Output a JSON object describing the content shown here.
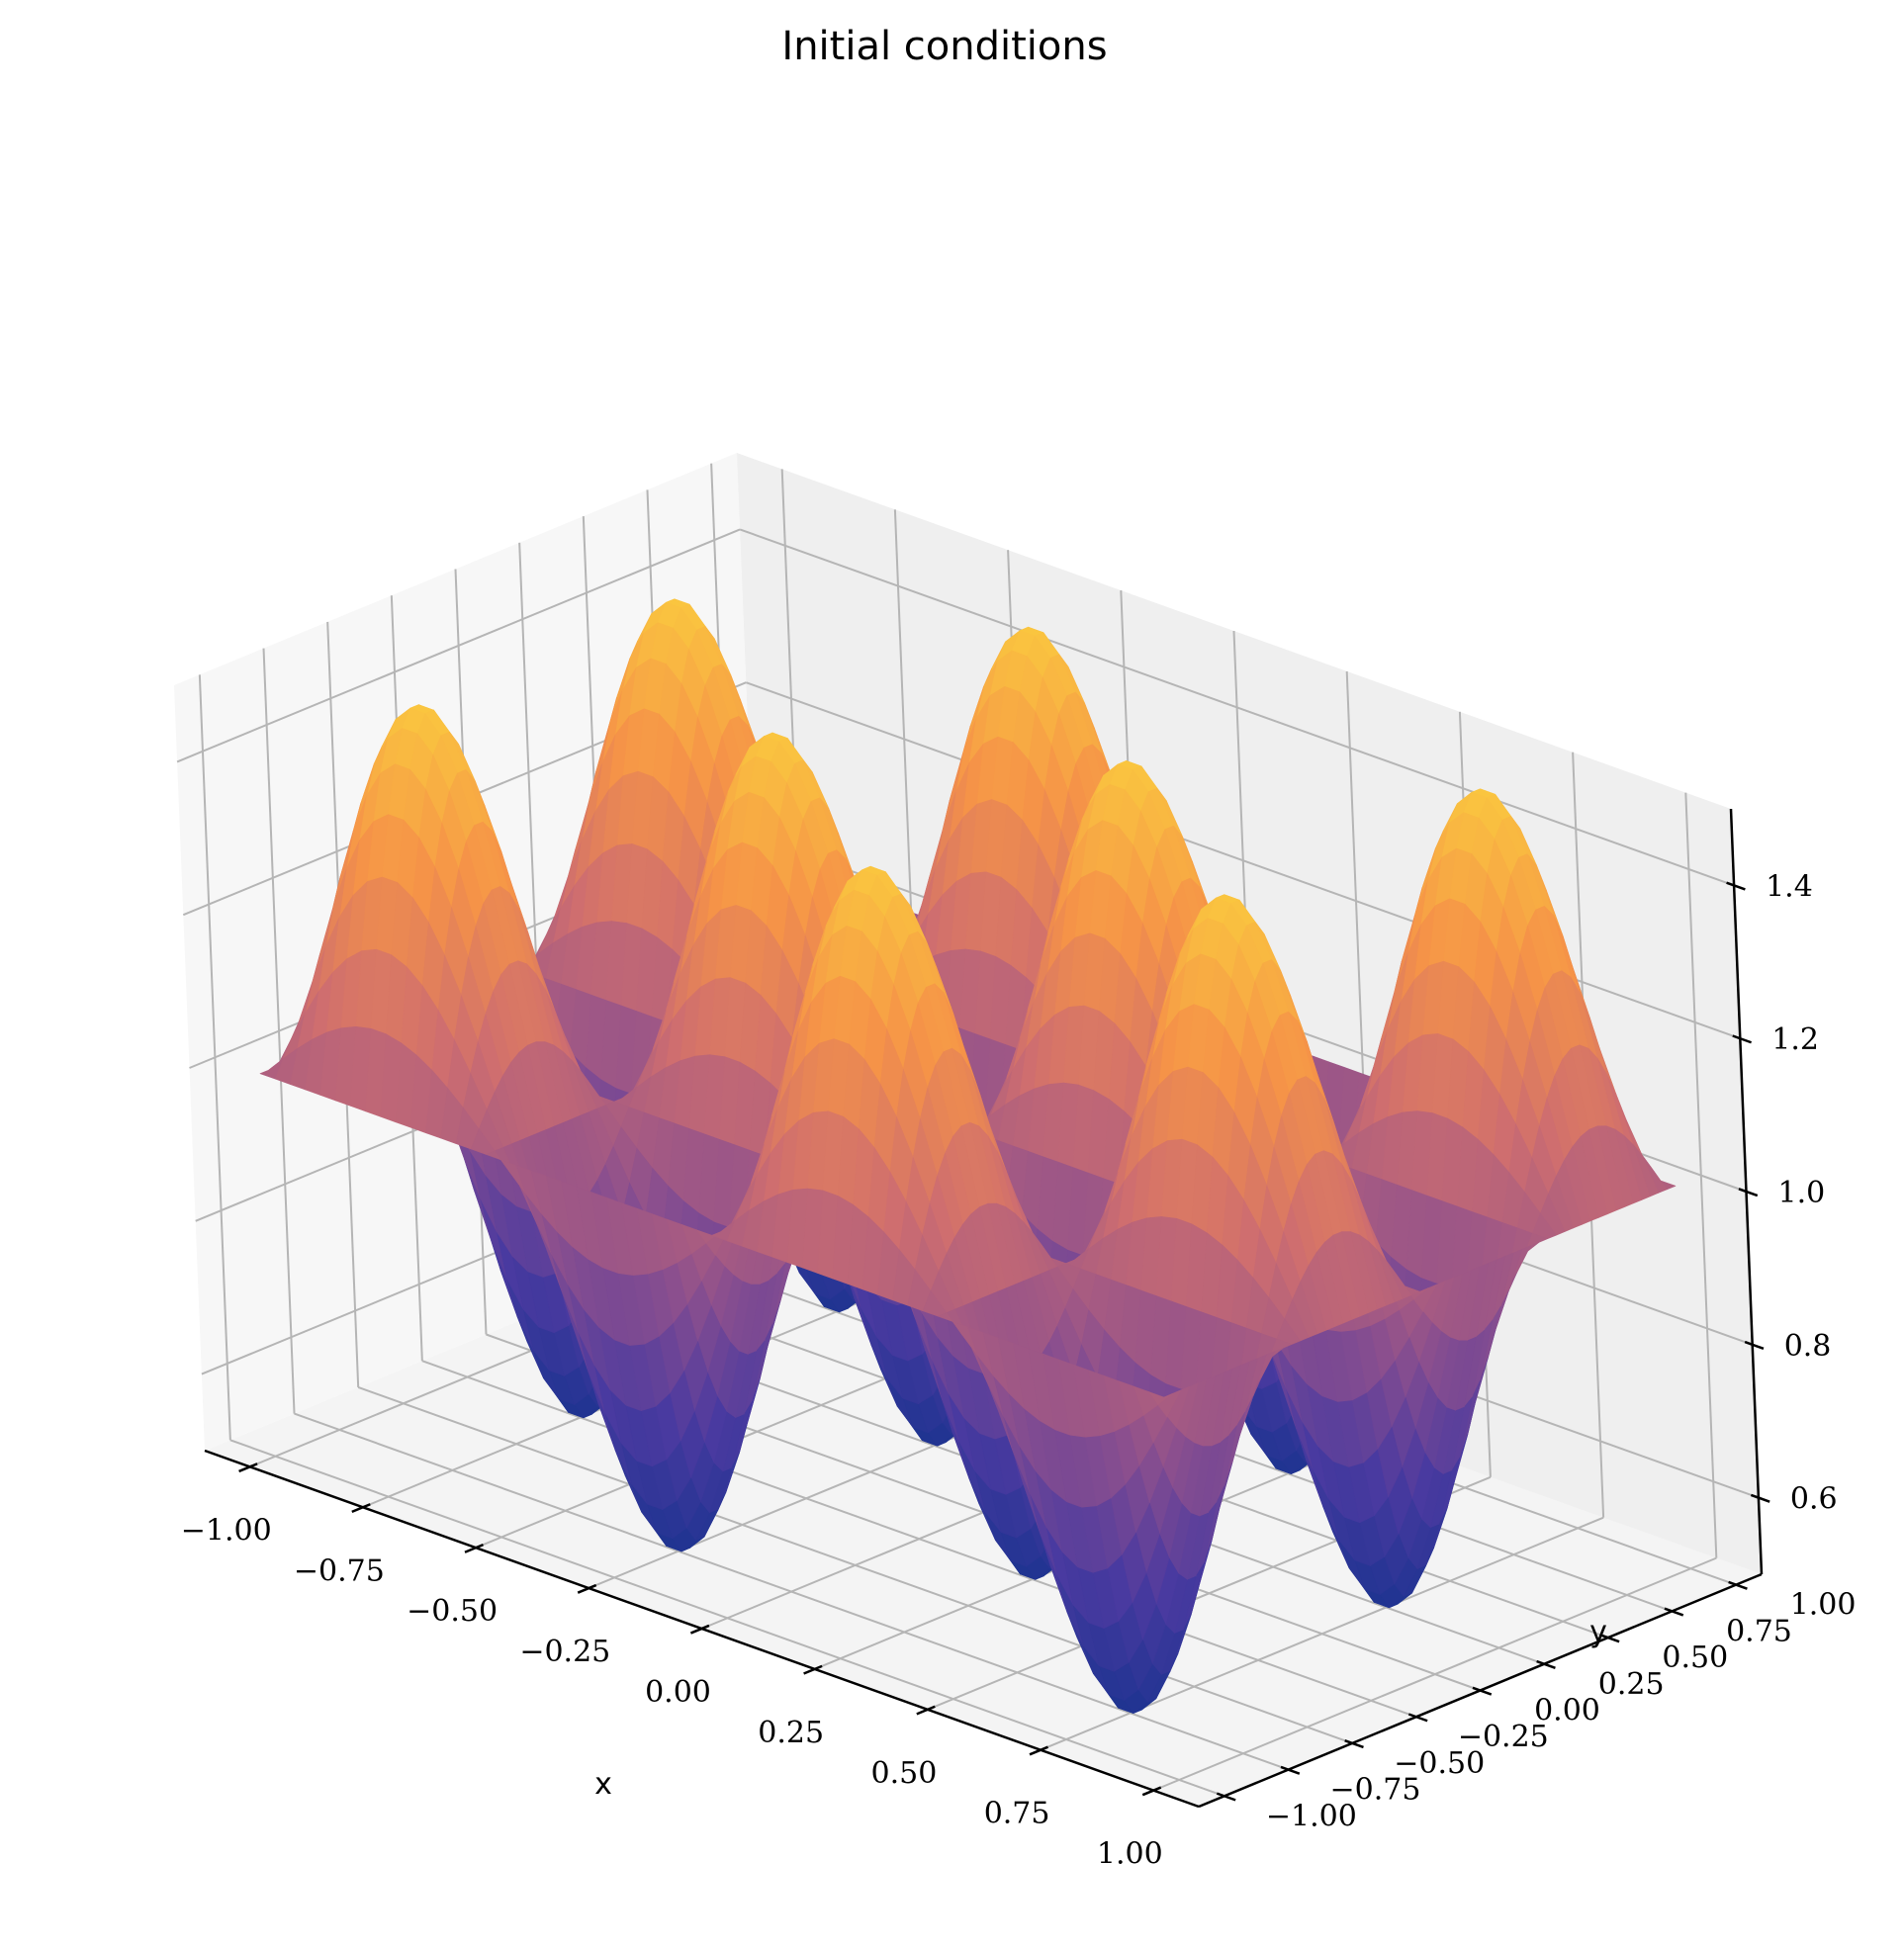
{
  "chart_data": {
    "type": "surface3d",
    "title": "Initial conditions",
    "xlabel": "x",
    "ylabel": "y",
    "zlabel": "",
    "xlim": [
      -1.1,
      1.1
    ],
    "ylim": [
      -1.1,
      1.1
    ],
    "zlim": [
      0.5,
      1.5
    ],
    "x_ticks": [
      -1.0,
      -0.75,
      -0.5,
      -0.25,
      0.0,
      0.25,
      0.5,
      0.75,
      1.0
    ],
    "y_ticks": [
      -1.0,
      -0.75,
      -0.5,
      -0.25,
      0.0,
      0.25,
      0.5,
      0.75,
      1.0
    ],
    "z_ticks": [
      0.6,
      0.8,
      1.0,
      1.2,
      1.4
    ],
    "x_tick_labels": [
      "−1.00",
      "−0.75",
      "−0.50",
      "−0.25",
      "0.00",
      "0.25",
      "0.50",
      "0.75",
      "1.00"
    ],
    "y_tick_labels": [
      "−1.00",
      "−0.75",
      "−0.50",
      "−0.25",
      "0.00",
      "0.25",
      "0.50",
      "0.75",
      "1.00"
    ],
    "z_tick_labels": [
      "0.6",
      "0.8",
      "1.0",
      "1.2",
      "1.4"
    ],
    "surface": {
      "formula": "z = 1 + 0.5 * sin(2*pi*x) * sin(2*pi*y)",
      "x_domain": [
        -1.0,
        1.0
      ],
      "y_domain": [
        -1.0,
        1.0
      ],
      "z_min": 0.5,
      "z_max": 1.5,
      "colormap": "plasma-like",
      "colormap_stops": [
        "#1c3390",
        "#4a3aa0",
        "#8c4f8e",
        "#cf6e6f",
        "#f59248",
        "#fac63f"
      ]
    },
    "grid": true,
    "pane_color": "#f2f2f2",
    "gridline_color": "#b5b5b5"
  }
}
